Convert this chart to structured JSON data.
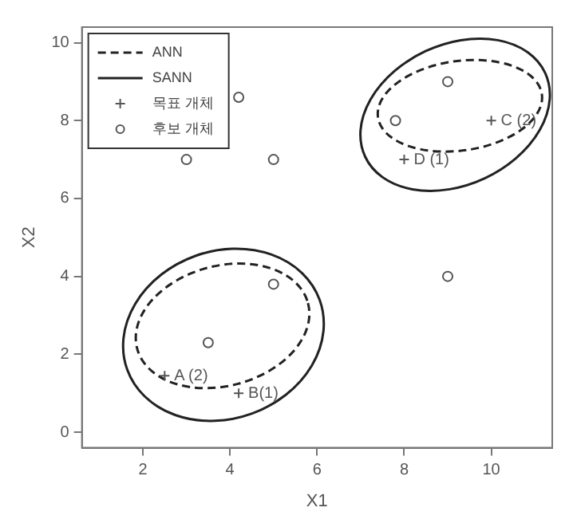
{
  "chart_data": {
    "type": "scatter",
    "xlabel": "X1",
    "ylabel": "X2",
    "xlim": [
      0.6,
      11.4
    ],
    "xticks": [
      2,
      4,
      6,
      8,
      10
    ],
    "ylim": [
      -0.4,
      10.4
    ],
    "yticks": [
      0,
      2,
      4,
      6,
      8,
      10
    ],
    "grid": false,
    "legend": "top left",
    "series": [
      {
        "name": "ANN",
        "type": "line",
        "line_style": "dashed",
        "marker": "none",
        "color": "#222222"
      },
      {
        "name": "SANN",
        "type": "line",
        "line_style": "solid",
        "marker": "none",
        "color": "#222222"
      },
      {
        "name": "목표 개체",
        "marker": "cross",
        "color": "#555555",
        "x": [
          2.5,
          4.2,
          10.0,
          8.0
        ],
        "values": [
          1.45,
          1.0,
          8.0,
          7.0
        ]
      },
      {
        "name": "후보 개체",
        "marker": "circle",
        "color": "#555555",
        "x": [
          3.0,
          4.2,
          5.0,
          9.0,
          7.8,
          9.0,
          3.5,
          5.0
        ],
        "values": [
          7.0,
          8.6,
          7.0,
          9.0,
          8.0,
          4.0,
          2.3,
          3.8
        ]
      }
    ],
    "annotations": [
      {
        "text": "A (2)",
        "x": 2.5,
        "y": 1.45
      },
      {
        "text": "B(1)",
        "x": 4.2,
        "y": 1.0
      },
      {
        "text": "C (2)",
        "x": 10.0,
        "y": 8.0
      },
      {
        "text": "D (1)",
        "x": 8.0,
        "y": 7.0
      }
    ]
  }
}
